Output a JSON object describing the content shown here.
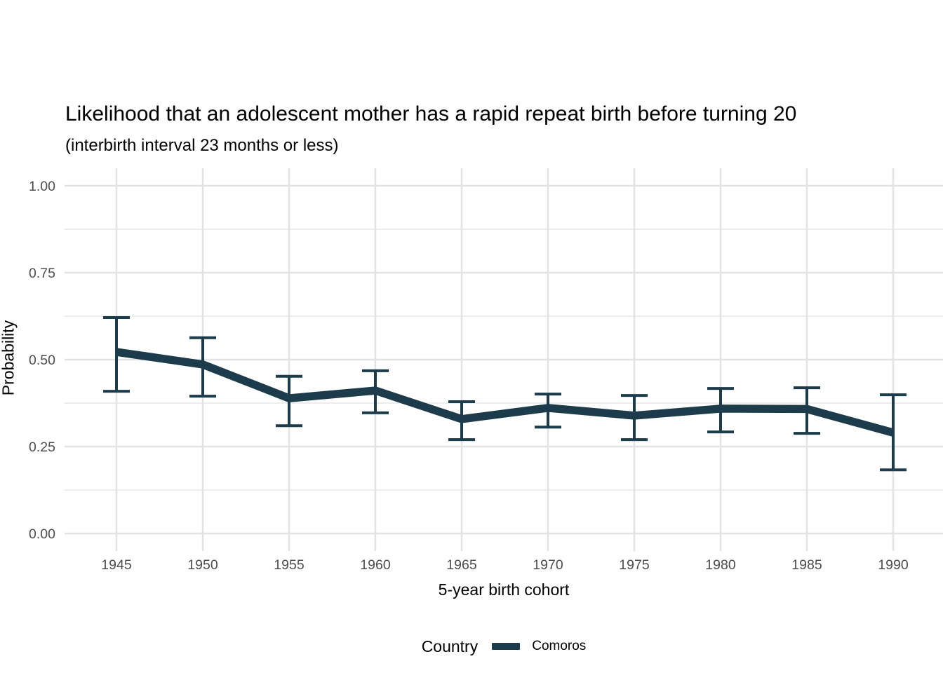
{
  "chart_data": {
    "type": "line",
    "title": "Likelihood that an adolescent mother has a rapid repeat birth before turning 20",
    "subtitle": "(interbirth interval 23 months or less)",
    "xlabel": "5-year birth cohort",
    "ylabel": "Probability",
    "xlim": [
      1945,
      1990
    ],
    "ylim": [
      0.0,
      1.0
    ],
    "x_ticks": [
      1945,
      1950,
      1955,
      1960,
      1965,
      1970,
      1975,
      1980,
      1985,
      1990
    ],
    "x_tick_labels": [
      "1945",
      "1950",
      "1955",
      "1960",
      "1965",
      "1970",
      "1975",
      "1980",
      "1985",
      "1990"
    ],
    "y_ticks": [
      0.0,
      0.25,
      0.5,
      0.75,
      1.0
    ],
    "y_tick_labels": [
      "0.00",
      "0.25",
      "0.50",
      "0.75",
      "1.00"
    ],
    "y_minor_ticks": [
      0.125,
      0.375,
      0.625,
      0.875
    ],
    "grid": "horizontal major+minor, vertical major only, light gray on white panel",
    "legend": {
      "title": "Country",
      "position": "bottom-center",
      "entries": [
        "Comoros"
      ]
    },
    "series": [
      {
        "name": "Comoros",
        "color": "#1d3c4b",
        "marker": "thick line with error bars",
        "x": [
          1945,
          1950,
          1955,
          1960,
          1965,
          1970,
          1975,
          1980,
          1985,
          1990
        ],
        "y": [
          0.522,
          0.486,
          0.389,
          0.411,
          0.329,
          0.361,
          0.339,
          0.359,
          0.358,
          0.29
        ],
        "ci_low": [
          0.409,
          0.395,
          0.31,
          0.347,
          0.27,
          0.306,
          0.27,
          0.292,
          0.288,
          0.183
        ],
        "ci_high": [
          0.621,
          0.563,
          0.452,
          0.468,
          0.379,
          0.401,
          0.397,
          0.417,
          0.419,
          0.399
        ]
      }
    ],
    "colors": {
      "series": "#1d3c4b",
      "grid_major": "#e3e3e3",
      "grid_minor": "#ededed",
      "tick_label": "#4d4d4d",
      "background": "#ffffff"
    }
  }
}
